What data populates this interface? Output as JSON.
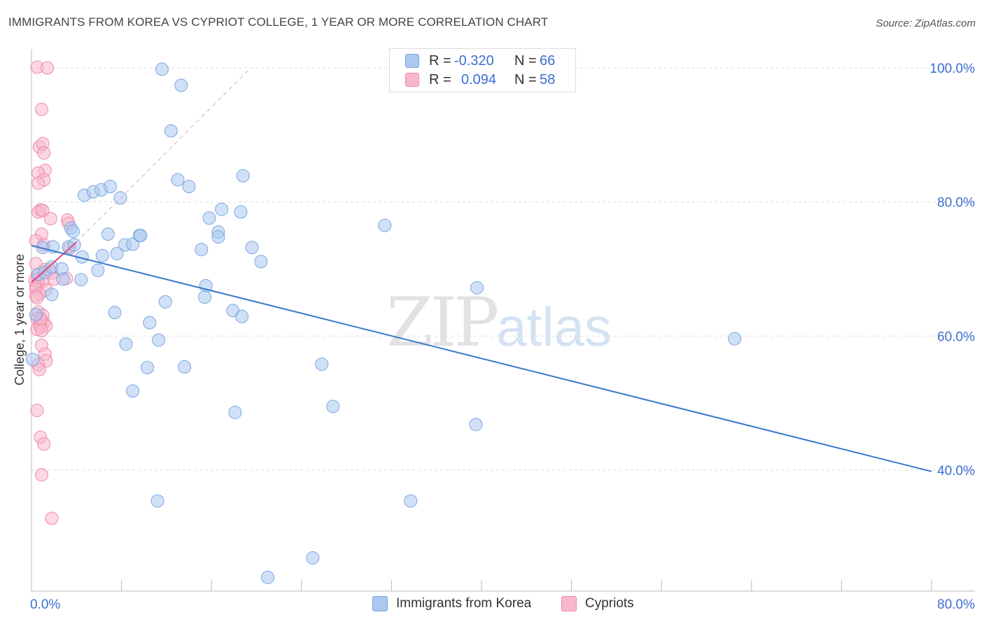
{
  "title": "IMMIGRANTS FROM KOREA VS CYPRIOT COLLEGE, 1 YEAR OR MORE CORRELATION CHART",
  "source": "Source: ZipAtlas.com",
  "watermark": {
    "zip": "ZIP",
    "atlas": "atlas"
  },
  "legend": {
    "rows": [
      {
        "r_label": "R =",
        "r_value": "-0.320",
        "n_label": "N =",
        "n_value": "66",
        "color": "#aac8f0"
      },
      {
        "r_label": "R =",
        "r_value": "0.094",
        "n_label": "N =",
        "n_value": "58",
        "color": "#f8b8cc"
      }
    ]
  },
  "bottom_legend": [
    {
      "label": "Immigrants from Korea",
      "color": "#aac8f0"
    },
    {
      "label": "Cypriots",
      "color": "#f8b8cc"
    }
  ],
  "colors": {
    "blue_fill": "#aac8f0",
    "blue_stroke": "#7aa6e0",
    "blue_line": "#3a78cc",
    "pink_fill": "#f8b8cc",
    "pink_stroke": "#ee8aa8",
    "pink_line": "#e0457a",
    "axis_label": "#3b6fd0"
  },
  "chart_data": {
    "type": "scatter",
    "title": "IMMIGRANTS FROM KOREA VS CYPRIOT COLLEGE, 1 YEAR OR MORE CORRELATION CHART",
    "xlabel": "",
    "ylabel": "College, 1 year or more",
    "xlim": [
      0,
      80
    ],
    "ylim": [
      22,
      102
    ],
    "x_tick_labels": [
      "0.0%",
      "80.0%"
    ],
    "y_ticks": [
      100,
      80,
      60,
      40
    ],
    "y_tick_labels": [
      "100.0%",
      "80.0%",
      "60.0%",
      "40.0%"
    ],
    "series": [
      {
        "name": "Immigrants from Korea",
        "points": [
          [
            0.1,
            56.5
          ],
          [
            0.4,
            63.2
          ],
          [
            0.6,
            69.2
          ],
          [
            1.0,
            73.2
          ],
          [
            1.2,
            69.5
          ],
          [
            1.9,
            73.3
          ],
          [
            1.8,
            70.3
          ],
          [
            2.7,
            70.0
          ],
          [
            3.3,
            73.3
          ],
          [
            1.8,
            66.2
          ],
          [
            4.4,
            68.4
          ],
          [
            2.8,
            68.5
          ],
          [
            3.5,
            76.1
          ],
          [
            3.7,
            75.6
          ],
          [
            4.5,
            71.8
          ],
          [
            4.7,
            81.0
          ],
          [
            5.5,
            81.5
          ],
          [
            6.2,
            81.8
          ],
          [
            7.0,
            82.3
          ],
          [
            5.9,
            69.8
          ],
          [
            6.3,
            72.0
          ],
          [
            6.8,
            75.2
          ],
          [
            7.9,
            80.6
          ],
          [
            8.3,
            73.6
          ],
          [
            7.6,
            72.3
          ],
          [
            9.0,
            73.7
          ],
          [
            9.6,
            75.0
          ],
          [
            9.7,
            75.0
          ],
          [
            7.4,
            63.5
          ],
          [
            8.4,
            58.8
          ],
          [
            9.0,
            51.8
          ],
          [
            10.3,
            55.3
          ],
          [
            10.5,
            62.0
          ],
          [
            11.3,
            59.4
          ],
          [
            11.9,
            65.1
          ],
          [
            11.6,
            99.8
          ],
          [
            13.3,
            97.4
          ],
          [
            13.0,
            83.3
          ],
          [
            12.4,
            90.6
          ],
          [
            14.0,
            82.3
          ],
          [
            13.6,
            55.4
          ],
          [
            15.1,
            72.9
          ],
          [
            15.5,
            67.5
          ],
          [
            15.4,
            65.8
          ],
          [
            15.8,
            77.6
          ],
          [
            16.6,
            75.5
          ],
          [
            16.6,
            74.8
          ],
          [
            16.9,
            78.9
          ],
          [
            18.6,
            78.5
          ],
          [
            17.9,
            63.8
          ],
          [
            18.8,
            83.9
          ],
          [
            18.7,
            62.9
          ],
          [
            19.6,
            73.2
          ],
          [
            20.4,
            71.1
          ],
          [
            18.1,
            48.6
          ],
          [
            11.2,
            35.4
          ],
          [
            21.0,
            24.0
          ],
          [
            25.0,
            26.9
          ],
          [
            25.8,
            55.8
          ],
          [
            26.8,
            49.5
          ],
          [
            31.4,
            76.5
          ],
          [
            33.7,
            35.4
          ],
          [
            39.6,
            67.2
          ],
          [
            39.5,
            46.8
          ],
          [
            62.5,
            59.6
          ],
          [
            3.8,
            73.6
          ]
        ]
      },
      {
        "name": "Cypriots",
        "points": [
          [
            0.5,
            100.1
          ],
          [
            1.4,
            100.0
          ],
          [
            0.9,
            93.8
          ],
          [
            0.7,
            88.2
          ],
          [
            1.0,
            88.7
          ],
          [
            1.1,
            87.3
          ],
          [
            1.2,
            84.7
          ],
          [
            0.6,
            84.3
          ],
          [
            1.1,
            83.3
          ],
          [
            0.6,
            82.8
          ],
          [
            0.8,
            78.8
          ],
          [
            0.6,
            78.5
          ],
          [
            1.0,
            78.7
          ],
          [
            1.7,
            77.5
          ],
          [
            3.2,
            77.3
          ],
          [
            3.3,
            76.8
          ],
          [
            0.9,
            75.2
          ],
          [
            0.4,
            74.2
          ],
          [
            1.1,
            73.6
          ],
          [
            3.4,
            73.1
          ],
          [
            0.4,
            70.8
          ],
          [
            1.2,
            69.9
          ],
          [
            1.8,
            69.4
          ],
          [
            0.5,
            69.0
          ],
          [
            0.6,
            68.5
          ],
          [
            0.3,
            68.3
          ],
          [
            1.0,
            68.2
          ],
          [
            0.6,
            67.9
          ],
          [
            0.4,
            67.4
          ],
          [
            0.4,
            67.0
          ],
          [
            1.3,
            66.9
          ],
          [
            0.7,
            66.3
          ],
          [
            0.4,
            66.0
          ],
          [
            0.5,
            65.7
          ],
          [
            3.1,
            68.6
          ],
          [
            0.6,
            63.6
          ],
          [
            1.0,
            63.1
          ],
          [
            0.5,
            62.6
          ],
          [
            0.9,
            62.2
          ],
          [
            1.1,
            62.0
          ],
          [
            0.7,
            61.6
          ],
          [
            1.3,
            61.5
          ],
          [
            0.8,
            61.3
          ],
          [
            0.5,
            61.0
          ],
          [
            0.9,
            60.8
          ],
          [
            0.9,
            58.6
          ],
          [
            1.2,
            57.3
          ],
          [
            1.3,
            56.3
          ],
          [
            0.6,
            55.7
          ],
          [
            0.7,
            55.0
          ],
          [
            0.5,
            48.9
          ],
          [
            0.8,
            44.9
          ],
          [
            1.1,
            43.9
          ],
          [
            0.9,
            39.3
          ],
          [
            1.8,
            32.8
          ],
          [
            0.8,
            62.6
          ],
          [
            1.6,
            69.9
          ],
          [
            2.0,
            68.5
          ]
        ]
      }
    ],
    "trend_lines": [
      {
        "series": "Immigrants from Korea",
        "from": [
          0,
          73.5
        ],
        "to": [
          80,
          39.8
        ]
      },
      {
        "series": "Cypriots",
        "from": [
          0,
          68.0
        ],
        "to": [
          4,
          74.0
        ]
      },
      {
        "series": "Cypriots-dashed",
        "from": [
          4,
          74.0
        ],
        "to": [
          19.5,
          100.0
        ]
      }
    ]
  }
}
